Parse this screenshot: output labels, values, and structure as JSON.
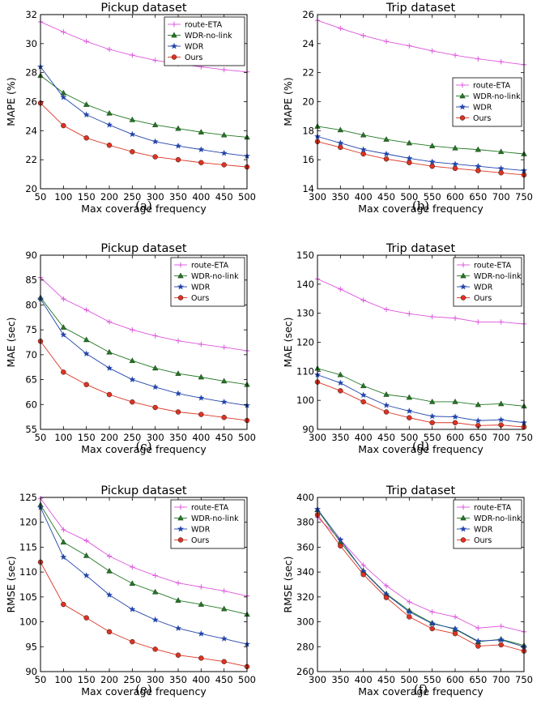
{
  "chart_data": [
    {
      "type": "line",
      "caption": "(a)",
      "title": "Pickup dataset",
      "xlabel": "Max coverage frequency",
      "ylabel": "MAPE (%)",
      "x": [
        50,
        100,
        150,
        200,
        250,
        300,
        350,
        400,
        450,
        500
      ],
      "xticks": [
        50,
        100,
        150,
        200,
        250,
        300,
        350,
        400,
        450,
        500
      ],
      "yticks": [
        20,
        22,
        24,
        26,
        28,
        30,
        32
      ],
      "xlim": [
        50,
        500
      ],
      "ylim": [
        20,
        32
      ],
      "legend": "top-right",
      "grid": false,
      "series": [
        {
          "name": "route-ETA",
          "color": "#dd55dd",
          "marker": "plus",
          "values": [
            31.5,
            30.8,
            30.15,
            29.6,
            29.2,
            28.85,
            28.6,
            28.4,
            28.2,
            28.05
          ]
        },
        {
          "name": "WDR-no-link",
          "color": "#227722",
          "marker": "triangle",
          "values": [
            27.8,
            26.6,
            25.8,
            25.2,
            24.75,
            24.4,
            24.15,
            23.9,
            23.7,
            23.55
          ]
        },
        {
          "name": "WDR",
          "color": "#2244aa",
          "marker": "star",
          "values": [
            28.4,
            26.3,
            25.1,
            24.4,
            23.75,
            23.25,
            22.95,
            22.7,
            22.45,
            22.25
          ]
        },
        {
          "name": "Ours",
          "color": "#dd3322",
          "marker": "circle",
          "values": [
            25.9,
            24.35,
            23.5,
            23.0,
            22.55,
            22.2,
            22.0,
            21.8,
            21.65,
            21.5
          ]
        }
      ]
    },
    {
      "type": "line",
      "caption": "(b)",
      "title": "Trip dataset",
      "xlabel": "Max coverage frequency",
      "ylabel": "MAPE (%)",
      "x": [
        300,
        350,
        400,
        450,
        500,
        550,
        600,
        650,
        700,
        750
      ],
      "xticks": [
        300,
        350,
        400,
        450,
        500,
        550,
        600,
        650,
        700,
        750
      ],
      "yticks": [
        14,
        16,
        18,
        20,
        22,
        24,
        26
      ],
      "xlim": [
        300,
        750
      ],
      "ylim": [
        14,
        26
      ],
      "legend": "center-right",
      "grid": false,
      "series": [
        {
          "name": "route-ETA",
          "color": "#dd55dd",
          "marker": "plus",
          "values": [
            25.6,
            25.05,
            24.55,
            24.15,
            23.85,
            23.5,
            23.2,
            22.95,
            22.75,
            22.55
          ]
        },
        {
          "name": "WDR-no-link",
          "color": "#227722",
          "marker": "triangle",
          "values": [
            18.3,
            18.05,
            17.7,
            17.4,
            17.15,
            16.95,
            16.8,
            16.7,
            16.55,
            16.4
          ]
        },
        {
          "name": "WDR",
          "color": "#2244aa",
          "marker": "star",
          "values": [
            17.6,
            17.15,
            16.7,
            16.4,
            16.1,
            15.85,
            15.7,
            15.55,
            15.4,
            15.25
          ]
        },
        {
          "name": "Ours",
          "color": "#dd3322",
          "marker": "circle",
          "values": [
            17.25,
            16.85,
            16.4,
            16.05,
            15.8,
            15.55,
            15.4,
            15.25,
            15.1,
            14.95
          ]
        }
      ]
    },
    {
      "type": "line",
      "caption": "(c)",
      "title": "Pickup dataset",
      "xlabel": "Max coverage frequency",
      "ylabel": "MAE (sec)",
      "x": [
        50,
        100,
        150,
        200,
        250,
        300,
        350,
        400,
        450,
        500
      ],
      "xticks": [
        50,
        100,
        150,
        200,
        250,
        300,
        350,
        400,
        450,
        500
      ],
      "yticks": [
        55,
        60,
        65,
        70,
        75,
        80,
        85,
        90
      ],
      "xlim": [
        50,
        500
      ],
      "ylim": [
        55,
        90
      ],
      "legend": "top-right",
      "grid": false,
      "series": [
        {
          "name": "route-ETA",
          "color": "#dd55dd",
          "marker": "plus",
          "values": [
            85.5,
            81.2,
            79.0,
            76.6,
            75.0,
            73.8,
            72.8,
            72.1,
            71.5,
            70.8
          ]
        },
        {
          "name": "WDR-no-link",
          "color": "#227722",
          "marker": "triangle",
          "values": [
            81.5,
            75.5,
            73.0,
            70.5,
            68.8,
            67.3,
            66.2,
            65.5,
            64.7,
            64.0
          ]
        },
        {
          "name": "WDR",
          "color": "#2244aa",
          "marker": "star",
          "values": [
            81.2,
            74.0,
            70.2,
            67.3,
            65.0,
            63.5,
            62.2,
            61.3,
            60.5,
            59.8
          ]
        },
        {
          "name": "Ours",
          "color": "#dd3322",
          "marker": "circle",
          "values": [
            72.7,
            66.5,
            64.0,
            62.0,
            60.5,
            59.4,
            58.5,
            58.0,
            57.4,
            56.8
          ]
        }
      ]
    },
    {
      "type": "line",
      "caption": "(d)",
      "title": "Trip dataset",
      "xlabel": "Max coverage frequency",
      "ylabel": "MAE (sec)",
      "x": [
        300,
        350,
        400,
        450,
        500,
        550,
        600,
        650,
        700,
        750
      ],
      "xticks": [
        300,
        350,
        400,
        450,
        500,
        550,
        600,
        650,
        700,
        750
      ],
      "yticks": [
        90,
        100,
        110,
        120,
        130,
        140,
        150
      ],
      "xlim": [
        300,
        750
      ],
      "ylim": [
        90,
        150
      ],
      "legend": "top-right",
      "grid": false,
      "series": [
        {
          "name": "route-ETA",
          "color": "#dd55dd",
          "marker": "plus",
          "values": [
            141.8,
            138.3,
            134.5,
            131.3,
            129.8,
            128.8,
            128.3,
            127.0,
            127.0,
            126.3
          ]
        },
        {
          "name": "WDR-no-link",
          "color": "#227722",
          "marker": "triangle",
          "values": [
            111.0,
            108.8,
            105.0,
            102.0,
            101.0,
            99.5,
            99.5,
            98.5,
            98.8,
            98.0
          ]
        },
        {
          "name": "WDR",
          "color": "#2244aa",
          "marker": "star",
          "values": [
            108.8,
            106.0,
            101.8,
            98.3,
            96.3,
            94.5,
            94.3,
            93.0,
            93.3,
            92.3
          ]
        },
        {
          "name": "Ours",
          "color": "#dd3322",
          "marker": "circle",
          "values": [
            106.3,
            103.3,
            99.5,
            96.0,
            94.0,
            92.3,
            92.3,
            91.3,
            91.5,
            90.8
          ]
        }
      ]
    },
    {
      "type": "line",
      "caption": "(e)",
      "title": "Pickup dataset",
      "xlabel": "Max coverage frequency",
      "ylabel": "RMSE (sec)",
      "x": [
        50,
        100,
        150,
        200,
        250,
        300,
        350,
        400,
        450,
        500
      ],
      "xticks": [
        50,
        100,
        150,
        200,
        250,
        300,
        350,
        400,
        450,
        500
      ],
      "yticks": [
        90,
        95,
        100,
        105,
        110,
        115,
        120,
        125
      ],
      "xlim": [
        50,
        500
      ],
      "ylim": [
        90,
        125
      ],
      "legend": "top-right",
      "grid": false,
      "series": [
        {
          "name": "route-ETA",
          "color": "#dd55dd",
          "marker": "plus",
          "values": [
            124.8,
            118.5,
            116.3,
            113.2,
            111.0,
            109.3,
            107.8,
            107.0,
            106.2,
            105.2
          ]
        },
        {
          "name": "WDR-no-link",
          "color": "#227722",
          "marker": "triangle",
          "values": [
            123.5,
            116.0,
            113.3,
            110.2,
            107.7,
            106.0,
            104.3,
            103.5,
            102.6,
            101.5
          ]
        },
        {
          "name": "WDR",
          "color": "#2244aa",
          "marker": "star",
          "values": [
            123.0,
            113.0,
            109.3,
            105.4,
            102.5,
            100.4,
            98.7,
            97.6,
            96.6,
            95.5
          ]
        },
        {
          "name": "Ours",
          "color": "#dd3322",
          "marker": "circle",
          "values": [
            112.0,
            103.5,
            100.8,
            98.0,
            96.0,
            94.5,
            93.3,
            92.7,
            92.0,
            91.0
          ]
        }
      ]
    },
    {
      "type": "line",
      "caption": "(f)",
      "title": "Trip dataset",
      "xlabel": "Max coverage frequency",
      "ylabel": "RMSE (sec)",
      "x": [
        300,
        350,
        400,
        450,
        500,
        550,
        600,
        650,
        700,
        750
      ],
      "xticks": [
        300,
        350,
        400,
        450,
        500,
        550,
        600,
        650,
        700,
        750
      ],
      "yticks": [
        260,
        280,
        300,
        320,
        340,
        360,
        380,
        400
      ],
      "xlim": [
        300,
        750
      ],
      "ylim": [
        260,
        400
      ],
      "legend": "top-right",
      "grid": false,
      "series": [
        {
          "name": "route-ETA",
          "color": "#dd55dd",
          "marker": "plus",
          "values": [
            384.0,
            366.0,
            345.5,
            329.0,
            316.0,
            308.0,
            304.0,
            295.0,
            296.5,
            292.0
          ]
        },
        {
          "name": "WDR-no-link",
          "color": "#227722",
          "marker": "triangle",
          "values": [
            390.0,
            364.0,
            341.0,
            322.5,
            309.0,
            299.0,
            294.0,
            284.0,
            286.0,
            281.0
          ]
        },
        {
          "name": "WDR",
          "color": "#2244aa",
          "marker": "star",
          "values": [
            390.5,
            366.0,
            340.5,
            322.0,
            308.0,
            298.5,
            294.5,
            284.5,
            285.5,
            280.0
          ]
        },
        {
          "name": "Ours",
          "color": "#dd3322",
          "marker": "circle",
          "values": [
            386.0,
            361.0,
            338.0,
            319.5,
            304.0,
            294.5,
            290.5,
            280.5,
            281.5,
            276.5
          ]
        }
      ]
    }
  ]
}
